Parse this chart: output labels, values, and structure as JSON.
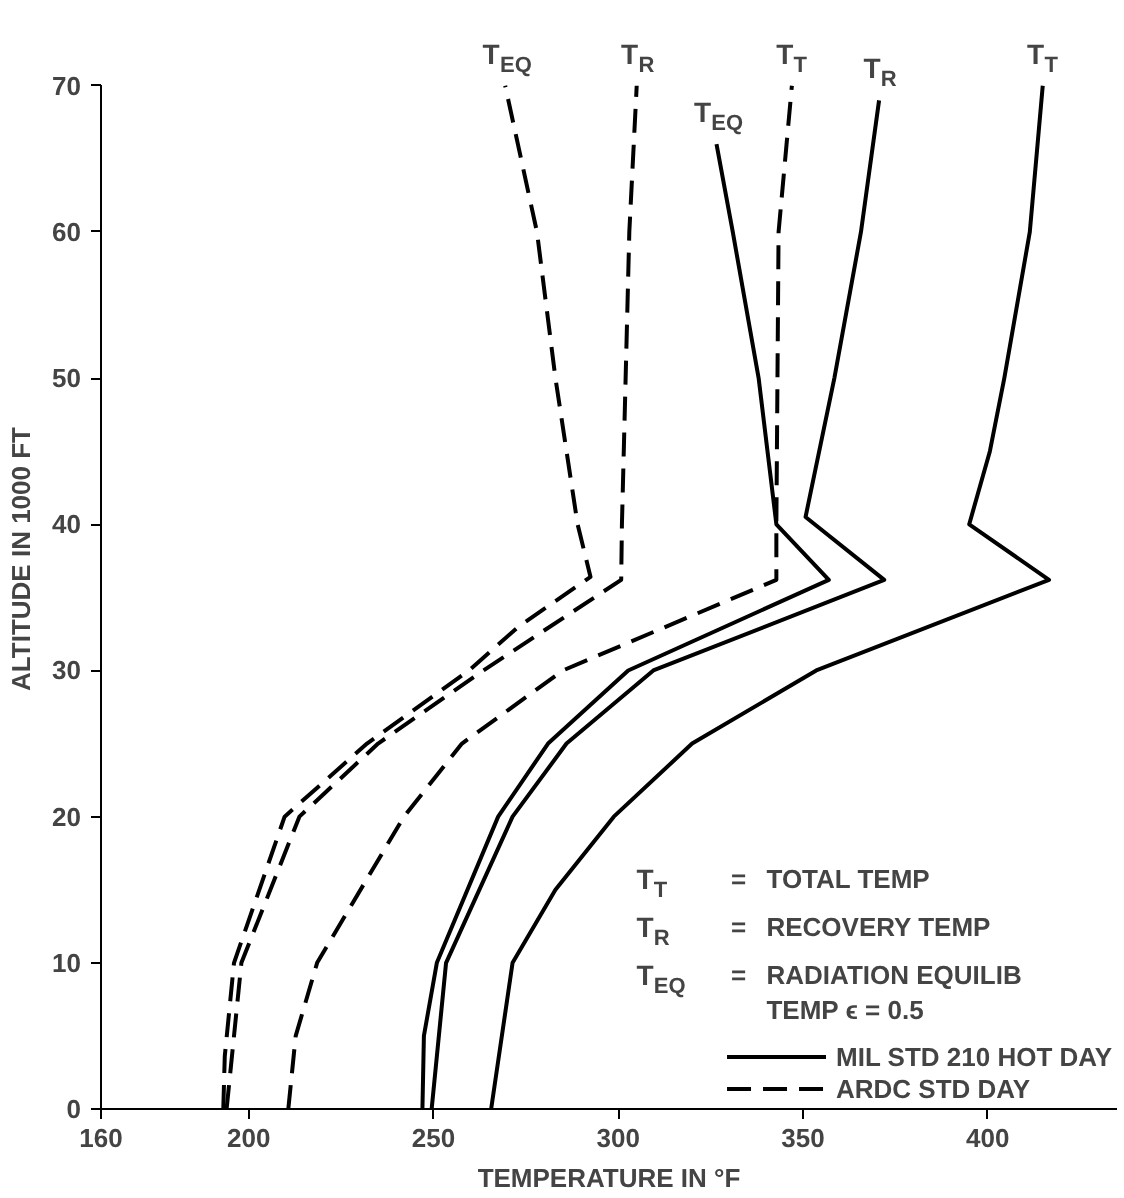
{
  "chart_data": {
    "type": "line",
    "xlabel": "TEMPERATURE IN °F",
    "ylabel": "ALTITUDE IN 1000 FT",
    "xlim": [
      160,
      435
    ],
    "ylim": [
      0,
      70
    ],
    "xticks": [
      160,
      200,
      250,
      300,
      350,
      400
    ],
    "yticks": [
      0,
      10,
      20,
      30,
      40,
      50,
      60,
      70
    ],
    "grid": false,
    "legend": "bottom right",
    "marker": "none",
    "series": [
      {
        "color": "#000000",
        "line_style": "solid",
        "x": [
          247,
          247.4,
          250.9,
          267.5,
          281,
          302.7,
          357,
          342.8,
          338,
          331,
          326.6
        ],
        "values": [
          0,
          5,
          10,
          20,
          25,
          30,
          36.2,
          40,
          50,
          60,
          66
        ]
      },
      {
        "color": "#000000",
        "line_style": "solid",
        "x": [
          249.5,
          253.4,
          271.4,
          286,
          309.5,
          372,
          350.7,
          358.5,
          365.7,
          370.6
        ],
        "values": [
          0,
          10,
          20,
          25,
          30,
          36.2,
          40.5,
          50,
          60,
          69
        ]
      },
      {
        "name": "MIL STD 210 HOT DAY",
        "color": "#000000",
        "line_style": "solid",
        "x": [
          265.6,
          271.4,
          283,
          298.8,
          320,
          353.6,
          416.6,
          395,
          400.6,
          404.5,
          411.4,
          414.9
        ],
        "values": [
          0,
          10,
          15,
          20,
          25,
          30,
          36.2,
          40,
          45,
          50,
          60,
          70
        ]
      },
      {
        "color": "#000000",
        "line_style": "dashed",
        "x": [
          193.1,
          193.5,
          196,
          209.7,
          232,
          259.6,
          273,
          292.5,
          289,
          283,
          278,
          269.4
        ],
        "values": [
          0,
          3.6,
          10,
          20,
          25,
          30,
          33,
          36.4,
          40,
          50,
          60,
          70
        ]
      },
      {
        "color": "#000000",
        "line_style": "dashed",
        "x": [
          194,
          198,
          213.7,
          235,
          263.5,
          300.8,
          301,
          302,
          303,
          305
        ],
        "values": [
          0,
          10,
          20,
          25,
          30,
          36.2,
          40,
          50,
          60,
          70
        ]
      },
      {
        "name": "ARDC STD DAY",
        "color": "#000000",
        "line_style": "dashed",
        "x": [
          210.7,
          212.7,
          218.5,
          242,
          257.7,
          285,
          342.8,
          342.8,
          343.4,
          347
        ],
        "values": [
          0,
          5,
          10,
          20,
          25,
          30,
          36.2,
          40,
          60,
          70
        ]
      }
    ],
    "annotations": [
      "T$_{EQ}$",
      "T$_{R}$",
      "T$_{T}$",
      "T$_{EQ}$",
      "T$_{R}$",
      "T$_{T}$",
      "T$_{T}$ = TOTAL TEMP",
      "T$_{R}$ = RECOVERY TEMP",
      "T$_{EQ}$ = RADIATION EQUILIB\nTEMP ϵ = 0.5"
    ]
  }
}
